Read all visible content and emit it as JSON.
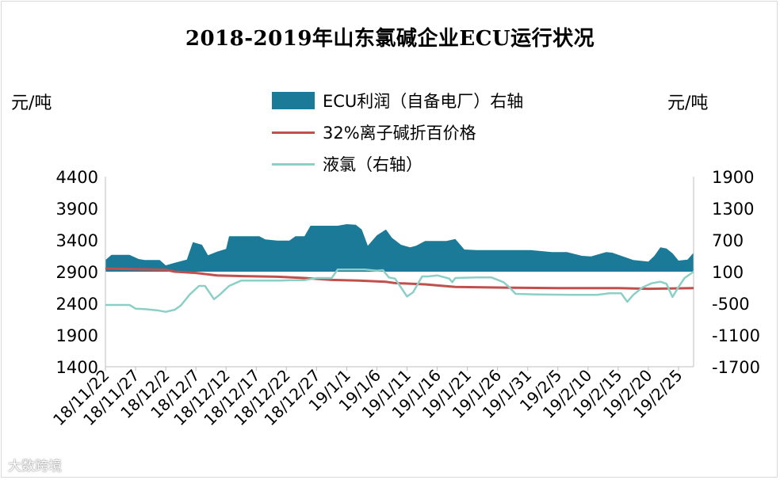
{
  "chart_data": {
    "type": "area",
    "title": "2018-2019年山东氯碱企业ECU运行状况",
    "left_axis_unit": "元/吨",
    "right_axis_unit": "元/吨",
    "left_ylim": [
      1400,
      4400
    ],
    "left_yticks": [
      4400,
      3900,
      3400,
      2900,
      2400,
      1900,
      1400
    ],
    "right_ylim": [
      -1700,
      1900
    ],
    "right_yticks": [
      1900,
      1300,
      700,
      100,
      -500,
      -1100,
      -1700
    ],
    "x_tick_labels": [
      "18/11/22",
      "18/11/27",
      "18/12/2",
      "18/12/7",
      "18/12/12",
      "18/12/17",
      "18/12/22",
      "18/12/27",
      "19/1/1",
      "19/1/6",
      "19/1/11",
      "19/1/16",
      "19/1/21",
      "19/1/26",
      "19/1/31",
      "19/2/5",
      "19/2/10",
      "19/2/15",
      "19/2/20",
      "19/2/25"
    ],
    "x_start_label": "18/11/22",
    "x_days": 96,
    "legend_position": "top",
    "series": [
      {
        "name": "ECU利润（自备电厂）右轴",
        "axis": "right",
        "kind": "area",
        "color": "#1b7a98",
        "points": [
          [
            0,
            320
          ],
          [
            2,
            420
          ],
          [
            5,
            420
          ],
          [
            8,
            420
          ],
          [
            11,
            340
          ],
          [
            13,
            320
          ],
          [
            18,
            320
          ],
          [
            20,
            220
          ],
          [
            23,
            270
          ],
          [
            27,
            330
          ],
          [
            29,
            660
          ],
          [
            32,
            610
          ],
          [
            34,
            410
          ],
          [
            37,
            480
          ],
          [
            40,
            530
          ],
          [
            41,
            770
          ],
          [
            45,
            770
          ],
          [
            51,
            770
          ],
          [
            53,
            710
          ],
          [
            57,
            690
          ],
          [
            61,
            690
          ],
          [
            63,
            770
          ],
          [
            66,
            770
          ],
          [
            68,
            970
          ],
          [
            77,
            970
          ],
          [
            80,
            1000
          ],
          [
            83,
            990
          ],
          [
            85,
            900
          ],
          [
            87,
            590
          ],
          [
            90,
            790
          ],
          [
            93,
            900
          ],
          [
            95,
            740
          ],
          [
            98,
            610
          ],
          [
            101,
            560
          ],
          [
            103,
            590
          ],
          [
            106,
            680
          ],
          [
            113,
            680
          ],
          [
            116,
            720
          ],
          [
            119,
            520
          ],
          [
            123,
            510
          ],
          [
            134,
            510
          ],
          [
            141,
            510
          ],
          [
            148,
            470
          ],
          [
            153,
            470
          ],
          [
            158,
            400
          ],
          [
            161,
            390
          ],
          [
            166,
            470
          ],
          [
            168,
            460
          ],
          [
            175,
            320
          ],
          [
            180,
            290
          ],
          [
            182,
            400
          ],
          [
            184,
            560
          ],
          [
            186,
            540
          ],
          [
            188,
            450
          ],
          [
            190,
            310
          ],
          [
            193,
            330
          ],
          [
            195,
            460
          ]
        ]
      },
      {
        "name": "32%离子碱折百价格",
        "axis": "left",
        "kind": "line",
        "color": "#c0504d",
        "points": [
          [
            0,
            2950
          ],
          [
            20,
            2930
          ],
          [
            23,
            2900
          ],
          [
            30,
            2880
          ],
          [
            37,
            2840
          ],
          [
            46,
            2830
          ],
          [
            57,
            2820
          ],
          [
            66,
            2800
          ],
          [
            75,
            2770
          ],
          [
            84,
            2760
          ],
          [
            93,
            2740
          ],
          [
            96,
            2720
          ],
          [
            106,
            2700
          ],
          [
            116,
            2660
          ],
          [
            130,
            2650
          ],
          [
            150,
            2640
          ],
          [
            170,
            2640
          ],
          [
            180,
            2630
          ],
          [
            195,
            2640
          ]
        ]
      },
      {
        "name": "液氯（右轴）",
        "axis": "right",
        "kind": "line",
        "color": "#8ccfc7",
        "points": [
          [
            0,
            -530
          ],
          [
            5,
            -530
          ],
          [
            8,
            -530
          ],
          [
            10,
            -600
          ],
          [
            13,
            -610
          ],
          [
            17,
            -630
          ],
          [
            20,
            -660
          ],
          [
            23,
            -620
          ],
          [
            25,
            -540
          ],
          [
            28,
            -330
          ],
          [
            31,
            -170
          ],
          [
            33,
            -170
          ],
          [
            36,
            -420
          ],
          [
            38,
            -330
          ],
          [
            41,
            -170
          ],
          [
            45,
            -70
          ],
          [
            58,
            -70
          ],
          [
            62,
            -60
          ],
          [
            66,
            -60
          ],
          [
            70,
            -20
          ],
          [
            73,
            -20
          ],
          [
            75,
            -20
          ],
          [
            77,
            140
          ],
          [
            86,
            140
          ],
          [
            90,
            120
          ],
          [
            92,
            130
          ],
          [
            94,
            -10
          ],
          [
            96,
            -30
          ],
          [
            100,
            -370
          ],
          [
            102,
            -290
          ],
          [
            105,
            10
          ],
          [
            107,
            10
          ],
          [
            110,
            30
          ],
          [
            114,
            -30
          ],
          [
            115,
            -100
          ],
          [
            116,
            -20
          ],
          [
            123,
            -10
          ],
          [
            128,
            -10
          ],
          [
            132,
            -100
          ],
          [
            134,
            -200
          ],
          [
            136,
            -320
          ],
          [
            143,
            -330
          ],
          [
            155,
            -340
          ],
          [
            163,
            -340
          ],
          [
            167,
            -310
          ],
          [
            171,
            -310
          ],
          [
            173,
            -470
          ],
          [
            175,
            -340
          ],
          [
            178,
            -200
          ],
          [
            181,
            -120
          ],
          [
            184,
            -90
          ],
          [
            186,
            -130
          ],
          [
            188,
            -380
          ],
          [
            190,
            -190
          ],
          [
            192,
            -20
          ],
          [
            195,
            100
          ]
        ]
      }
    ]
  },
  "watermark": "大数跨境"
}
